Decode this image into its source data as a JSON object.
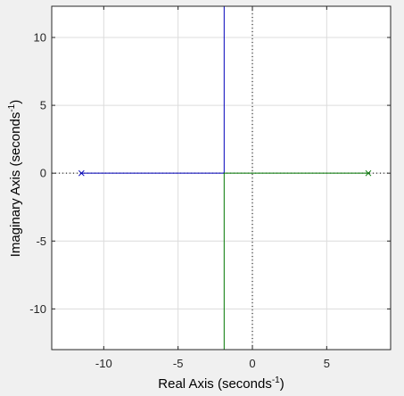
{
  "chart_data": {
    "type": "line",
    "title": "",
    "xlabel": {
      "prefix": "Real Axis (seconds",
      "superscript": "-1",
      "suffix": ")"
    },
    "ylabel": {
      "prefix": "Imaginary Axis (seconds",
      "superscript": "-1",
      "suffix": ")"
    },
    "xlim": [
      -13.5,
      9.3
    ],
    "ylim": [
      -13,
      12.3
    ],
    "xticks": [
      -10,
      -5,
      0,
      5
    ],
    "yticks": [
      -10,
      -5,
      0,
      5,
      10
    ],
    "xtick_labels": [
      "-10",
      "-5",
      "0",
      "5"
    ],
    "ytick_labels": [
      "-10",
      "-5",
      "0",
      "5",
      "10"
    ],
    "grid": true,
    "legend": "none",
    "series": [
      {
        "color": "#0000bb",
        "points": [
          [
            -11.5,
            0
          ],
          [
            -1.9,
            0
          ],
          [
            -1.9,
            12.3
          ]
        ]
      },
      {
        "color": "#007700",
        "points": [
          [
            7.8,
            0
          ],
          [
            -1.9,
            0
          ],
          [
            -1.9,
            -13
          ]
        ]
      }
    ],
    "poles": [
      {
        "x": -11.5,
        "y": 0,
        "color": "#0000bb"
      },
      {
        "x": 7.8,
        "y": 0,
        "color": "#007700"
      }
    ],
    "zero_lines": true
  }
}
